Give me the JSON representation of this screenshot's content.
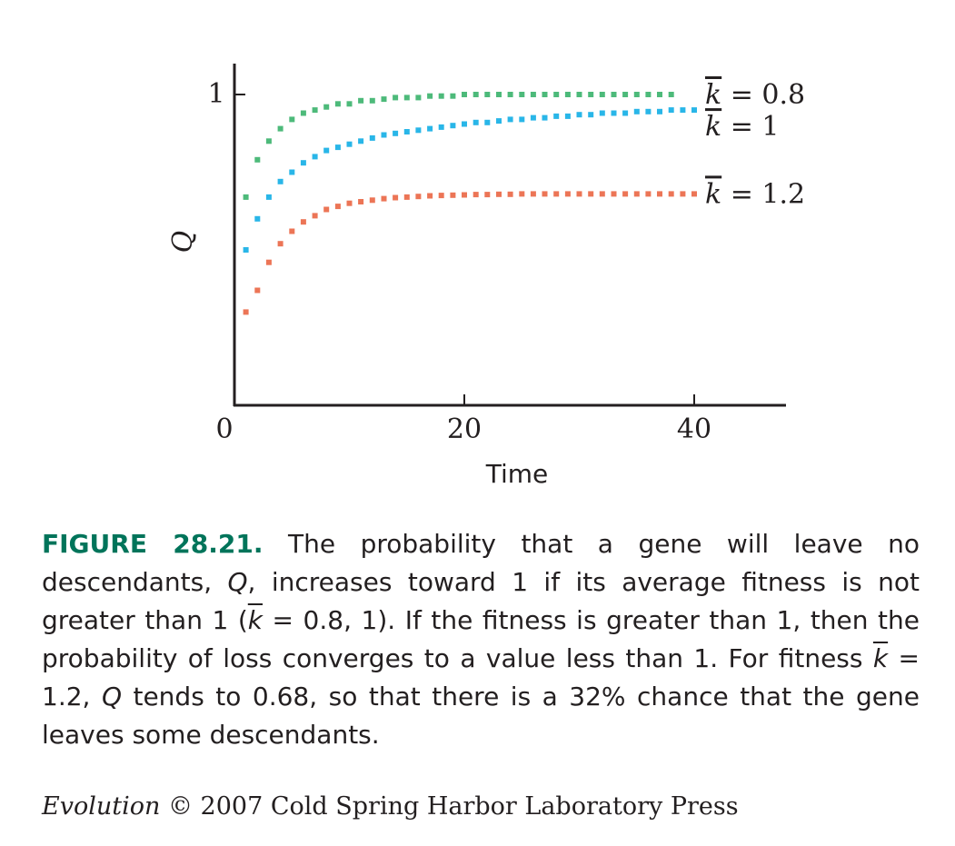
{
  "chart_data": {
    "type": "scatter",
    "xlabel": "Time",
    "ylabel": "Q",
    "xlim": [
      0,
      48
    ],
    "ylim": [
      0,
      1.1
    ],
    "x_ticks": [
      "0",
      "20",
      "40"
    ],
    "y_ticks": [
      "1"
    ],
    "grid": false,
    "series": [
      {
        "name": "k = 0.8",
        "color": "#4dba7a",
        "values": [
          0.67,
          0.79,
          0.85,
          0.89,
          0.92,
          0.94,
          0.95,
          0.96,
          0.97,
          0.97,
          0.98,
          0.98,
          0.985,
          0.99,
          0.99,
          0.99,
          0.995,
          0.995,
          0.995,
          1.0,
          1.0,
          1.0,
          1.0,
          1.0,
          1.0,
          1.0,
          1.0,
          1.0,
          1.0,
          1.0,
          1.0,
          1.0,
          1.0,
          1.0,
          1.0,
          1.0,
          1.0,
          1.0
        ]
      },
      {
        "name": "k = 1",
        "color": "#29b6e8",
        "values": [
          0.5,
          0.6,
          0.67,
          0.72,
          0.75,
          0.78,
          0.8,
          0.82,
          0.83,
          0.84,
          0.85,
          0.86,
          0.87,
          0.875,
          0.88,
          0.885,
          0.89,
          0.895,
          0.9,
          0.905,
          0.91,
          0.91,
          0.915,
          0.92,
          0.92,
          0.925,
          0.925,
          0.93,
          0.93,
          0.935,
          0.935,
          0.94,
          0.94,
          0.94,
          0.945,
          0.945,
          0.945,
          0.95,
          0.95,
          0.95
        ]
      },
      {
        "name": "k = 1.2",
        "color": "#ec7556",
        "values": [
          0.3,
          0.37,
          0.46,
          0.52,
          0.56,
          0.59,
          0.61,
          0.63,
          0.64,
          0.65,
          0.655,
          0.66,
          0.665,
          0.668,
          0.67,
          0.672,
          0.674,
          0.675,
          0.676,
          0.677,
          0.678,
          0.678,
          0.679,
          0.679,
          0.68,
          0.68,
          0.68,
          0.68,
          0.68,
          0.68,
          0.68,
          0.68,
          0.68,
          0.68,
          0.68,
          0.68,
          0.68,
          0.68,
          0.68,
          0.68
        ]
      }
    ]
  },
  "caption": {
    "lead": "FIGURE 28.21.",
    "p1": " The probability that a gene will leave no descendants, ",
    "q1": "Q",
    "p2": ", increases toward 1 if its average fitness is not greater than 1 (",
    "k1": "k",
    "p3": " = 0.8, 1). If the fitness is greater than 1, then the probability of loss converges to a value less than 1. For fitness ",
    "k2": "k",
    "p4": " = 1.2, ",
    "q2": "Q",
    "p5": " tends to 0.68, so that there is a 32% chance that the gene leaves some descendants."
  },
  "credit": {
    "title": "Evolution",
    "rest": " © 2007 Cold Spring Harbor Laboratory Press"
  }
}
